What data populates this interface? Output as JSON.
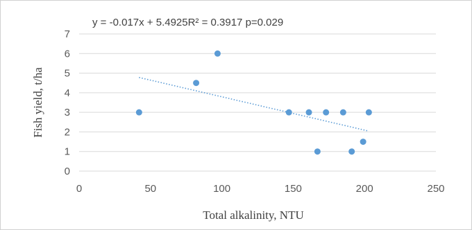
{
  "chart_data": {
    "type": "scatter",
    "annotation": "y = -0.017x + 5.4925R² = 0.3917 p=0.029",
    "xlabel": "Total alkalinity,  NTU",
    "ylabel": "Fish yield,  t/ha",
    "xlim": [
      0,
      250
    ],
    "ylim": [
      0,
      7
    ],
    "x_ticks": [
      "0",
      "50",
      "100",
      "150",
      "200",
      "250"
    ],
    "y_ticks": [
      "0",
      "1",
      "2",
      "3",
      "4",
      "5",
      "6",
      "7"
    ],
    "grid": "horizontal",
    "legend": "none",
    "points": [
      {
        "x": 42,
        "y": 3
      },
      {
        "x": 82,
        "y": 4.5
      },
      {
        "x": 97,
        "y": 6
      },
      {
        "x": 147,
        "y": 3
      },
      {
        "x": 161,
        "y": 3
      },
      {
        "x": 167,
        "y": 1
      },
      {
        "x": 173,
        "y": 3
      },
      {
        "x": 185,
        "y": 3
      },
      {
        "x": 191,
        "y": 1
      },
      {
        "x": 199,
        "y": 1.5
      },
      {
        "x": 203,
        "y": 3
      }
    ],
    "trendline": {
      "type": "linear",
      "style": "dotted",
      "slope": -0.017,
      "intercept": 5.4925,
      "x_range": [
        42,
        203
      ]
    },
    "colors": {
      "points": "#5b9bd5",
      "trendline": "#5b9bd5",
      "grid": "#d9d9d9"
    }
  }
}
